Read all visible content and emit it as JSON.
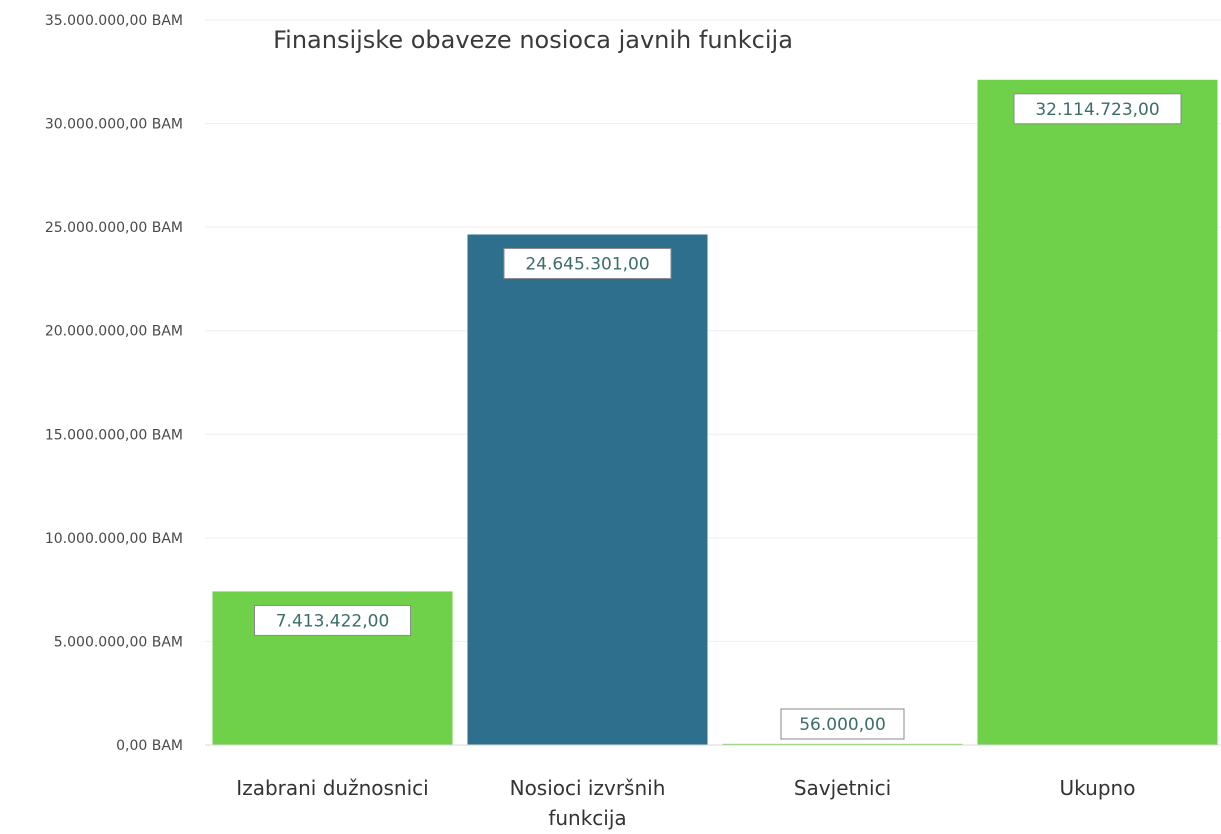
{
  "chart_data": {
    "type": "bar",
    "title": "Finansijske obaveze nosioca javnih funkcija",
    "xlabel": "",
    "ylabel": "",
    "categories": [
      [
        "Izabrani dužnosnici"
      ],
      [
        "Nosioci izvršnih",
        "funkcija"
      ],
      [
        "Savjetnici"
      ],
      [
        "Ukupno"
      ]
    ],
    "values": [
      7413422,
      24645301,
      56000,
      32114723
    ],
    "value_labels": [
      "7.413.422,00",
      "24.645.301,00",
      "56.000,00",
      "32.114.723,00"
    ],
    "bar_colors": [
      "#6fd04a",
      "#2e6f8e",
      "#6fd04a",
      "#6fd04a"
    ],
    "ylim": [
      0,
      35000000
    ],
    "y_ticks": [
      "0,00 BAM",
      "5.000.000,00 BAM",
      "10.000.000,00 BAM",
      "15.000.000,00 BAM",
      "20.000.000,00 BAM",
      "25.000.000,00 BAM",
      "30.000.000,00 BAM",
      "35.000.000,00 BAM"
    ],
    "grid": true,
    "legend": "none"
  }
}
